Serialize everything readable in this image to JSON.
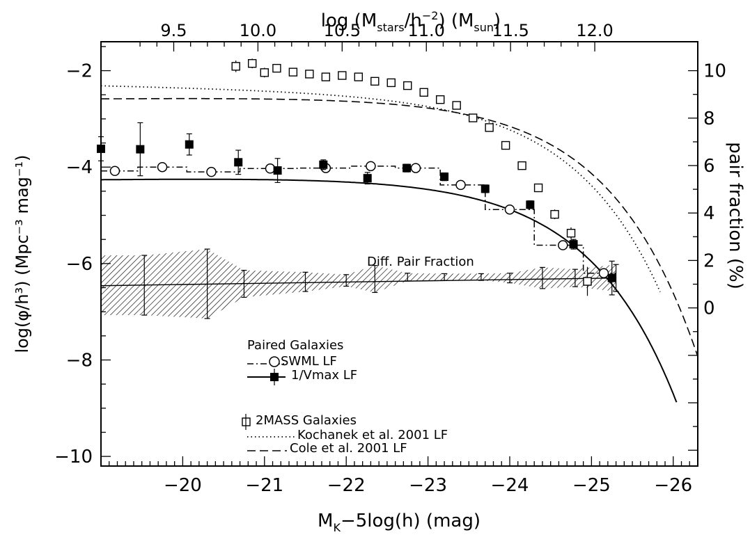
{
  "chart_data": {
    "type": "scatter",
    "xlabel_bottom": "M",
    "xlabel_bottom_sub": "K",
    "xlabel_bottom_rest": "−5log(h) (mag)",
    "xlabel_top_prefix": "log (M",
    "xlabel_top_sub1": "stars",
    "xlabel_top_mid": "/h",
    "xlabel_top_sup": "−2",
    "xlabel_top_mid2": ") (M",
    "xlabel_top_sub2": "sun",
    "xlabel_top_suffix": ")",
    "ylabel_left": "log(φ/h³) (Mpc⁻³ mag⁻¹)",
    "ylabel_right": "pair fraction (%)",
    "xlim_mag": [
      -19.0,
      -26.3
    ],
    "ylim_logphi": [
      -10.2,
      -1.4
    ],
    "x_ticks_bottom": [
      "−20",
      "−21",
      "−22",
      "−23",
      "−24",
      "−25",
      "−26"
    ],
    "x_ticks_bottom_values": [
      -20,
      -21,
      -22,
      -23,
      -24,
      -25,
      -26
    ],
    "x_ticks_top": [
      "9.5",
      "10.0",
      "10.5",
      "11.0",
      "11.5",
      "12.0"
    ],
    "x_ticks_top_values": [
      9.5,
      10.0,
      10.5,
      11.0,
      11.5,
      12.0
    ],
    "y_ticks_left": [
      "−2",
      "−4",
      "−6",
      "−8",
      "−10"
    ],
    "y_ticks_left_values": [
      -2,
      -4,
      -6,
      -8,
      -10
    ],
    "y_ticks_right": [
      "10",
      "8",
      "6",
      "4",
      "2",
      "0"
    ],
    "y_ticks_right_values": [
      10,
      8,
      6,
      4,
      2,
      0
    ],
    "annotation": "Diff. Pair Fraction",
    "legend": {
      "group1_title": "Paired Galaxies",
      "swml": "SWML LF",
      "vmax": "1/Vmax LF",
      "group2_title": "2MASS Galaxies",
      "kochanek": "Kochanek et al. 2001 LF",
      "cole": "Cole et al. 2001 LF"
    },
    "series": [
      {
        "name": "2MASS Galaxies",
        "marker": "open-square",
        "points": [
          [
            -20.65,
            -1.91,
            0.12
          ],
          [
            -20.85,
            -1.85,
            0.1
          ],
          [
            -21.0,
            -2.04,
            0.1
          ],
          [
            -21.15,
            -1.95,
            0.08
          ],
          [
            -21.35,
            -2.03,
            0.06
          ],
          [
            -21.55,
            -2.07,
            0.06
          ],
          [
            -21.75,
            -2.13,
            0.06
          ],
          [
            -21.95,
            -2.1,
            0.06
          ],
          [
            -22.15,
            -2.13,
            0.05
          ],
          [
            -22.35,
            -2.22,
            0.05
          ],
          [
            -22.55,
            -2.25,
            0.05
          ],
          [
            -22.75,
            -2.31,
            0.05
          ],
          [
            -22.95,
            -2.45,
            0.05
          ],
          [
            -23.15,
            -2.6,
            0.05
          ],
          [
            -23.35,
            -2.72,
            0.05
          ],
          [
            -23.55,
            -2.98,
            0.05
          ],
          [
            -23.75,
            -3.18,
            0.05
          ],
          [
            -23.95,
            -3.55,
            0.06
          ],
          [
            -24.15,
            -3.97,
            0.07
          ],
          [
            -24.35,
            -4.43,
            0.08
          ],
          [
            -24.55,
            -4.98,
            0.1
          ],
          [
            -24.75,
            -5.37,
            0.12
          ],
          [
            -24.95,
            -6.37,
            0.3
          ]
        ]
      },
      {
        "name": "SWML LF",
        "marker": "open-circle",
        "points": [
          [
            -19.17,
            -4.08
          ],
          [
            -19.75,
            -4.0
          ],
          [
            -20.35,
            -4.1
          ],
          [
            -21.07,
            -4.03
          ],
          [
            -21.75,
            -4.02
          ],
          [
            -22.3,
            -3.98
          ],
          [
            -22.85,
            -4.02
          ],
          [
            -23.4,
            -4.37
          ],
          [
            -24.0,
            -4.88
          ],
          [
            -24.65,
            -5.62
          ],
          [
            -25.15,
            -6.2
          ]
        ],
        "step_levels": [
          [
            -19.0,
            -19.45,
            -4.08
          ],
          [
            -19.45,
            -20.05,
            -4.0
          ],
          [
            -20.05,
            -20.7,
            -4.1
          ],
          [
            -20.7,
            -21.4,
            -4.03
          ],
          [
            -21.4,
            -22.05,
            -4.02
          ],
          [
            -22.05,
            -22.6,
            -3.98
          ],
          [
            -22.6,
            -23.15,
            -4.02
          ],
          [
            -23.15,
            -23.7,
            -4.37
          ],
          [
            -23.7,
            -24.3,
            -4.88
          ],
          [
            -24.3,
            -24.9,
            -5.62
          ],
          [
            -24.9,
            -25.3,
            -6.2
          ]
        ]
      },
      {
        "name": "1/Vmax LF",
        "marker": "filled-square",
        "points": [
          [
            -19.0,
            -3.62,
            0.25
          ],
          [
            -19.48,
            -3.63,
            0.55
          ],
          [
            -20.08,
            -3.53,
            0.22
          ],
          [
            -20.68,
            -3.9,
            0.25
          ],
          [
            -21.16,
            -4.07,
            0.25
          ],
          [
            -21.72,
            -3.95,
            0.1
          ],
          [
            -22.26,
            -4.23,
            0.12
          ],
          [
            -22.74,
            -4.02,
            0.08
          ],
          [
            -23.2,
            -4.2,
            0.08
          ],
          [
            -23.7,
            -4.45,
            0.08
          ],
          [
            -24.25,
            -4.78,
            0.08
          ],
          [
            -24.78,
            -5.6,
            0.1
          ],
          [
            -25.25,
            -6.3,
            0.35
          ]
        ]
      },
      {
        "name": "Diff. Pair Fraction",
        "marker": "errorbar",
        "points": [
          [
            -19.53,
            -6.45,
            0.62
          ],
          [
            -20.3,
            -6.42,
            0.72
          ],
          [
            -20.75,
            -6.42,
            0.28
          ],
          [
            -21.5,
            -6.38,
            0.2
          ],
          [
            -22.0,
            -6.35,
            0.12
          ],
          [
            -22.35,
            -6.32,
            0.28
          ],
          [
            -22.75,
            -6.28,
            0.08
          ],
          [
            -23.2,
            -6.28,
            0.07
          ],
          [
            -23.65,
            -6.28,
            0.07
          ],
          [
            -24.0,
            -6.3,
            0.1
          ],
          [
            -24.4,
            -6.3,
            0.22
          ],
          [
            -24.8,
            -6.3,
            0.18
          ],
          [
            -25.3,
            -6.3,
            0.28
          ]
        ]
      }
    ],
    "curves": {
      "schechter_solid": {
        "name": "1/Vmax LF fit",
        "style": "solid"
      },
      "kochanek_dotted": {
        "name": "Kochanek et al. 2001 LF",
        "style": "dotted"
      },
      "cole_dashed": {
        "name": "Cole et al. 2001 LF",
        "style": "dashed"
      }
    }
  }
}
